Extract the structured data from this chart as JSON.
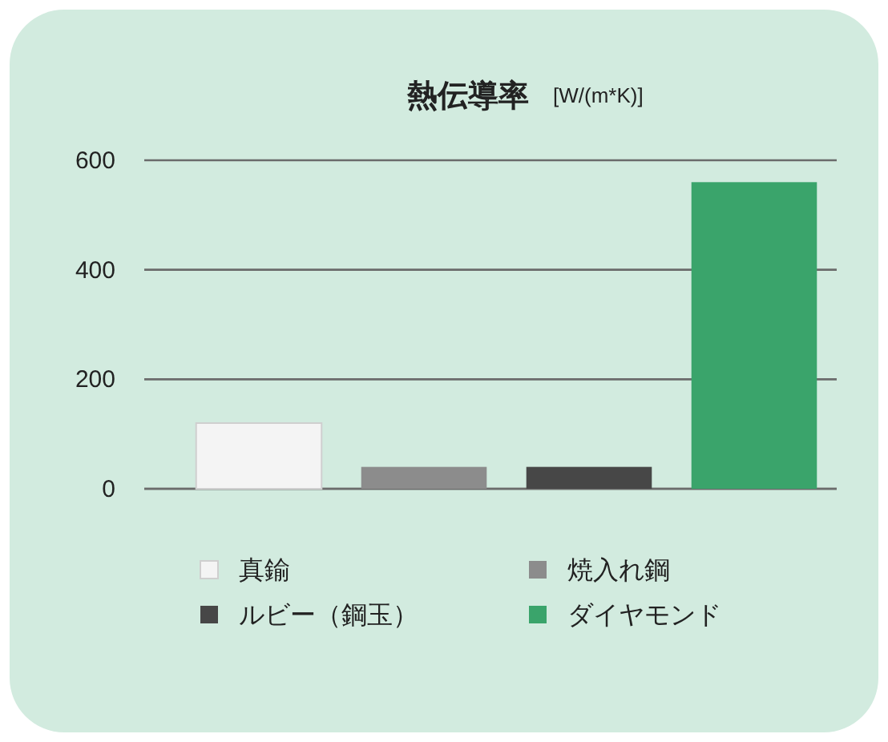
{
  "chart_data": {
    "type": "bar",
    "title": "熱伝導率",
    "subtitle": "[W/(m*K)]",
    "categories": [
      null,
      null,
      null,
      null
    ],
    "series": [
      {
        "name": "真鍮",
        "color": "#f4f4f4",
        "values": [
          120,
          null,
          null,
          null
        ]
      },
      {
        "name": "焼入れ鋼",
        "color": "#8c8c8c",
        "values": [
          null,
          40,
          null,
          null
        ]
      },
      {
        "name": "ルビー（鋼玉）",
        "color": "#474747",
        "values": [
          null,
          null,
          40,
          null
        ]
      },
      {
        "name": "ダイヤモンド",
        "color": "#3aa46b",
        "values": [
          null,
          null,
          null,
          560
        ]
      }
    ],
    "ylim": [
      0,
      600
    ],
    "yticks": [
      0,
      200,
      400,
      600
    ],
    "grid": "y",
    "legend": "bottom"
  }
}
